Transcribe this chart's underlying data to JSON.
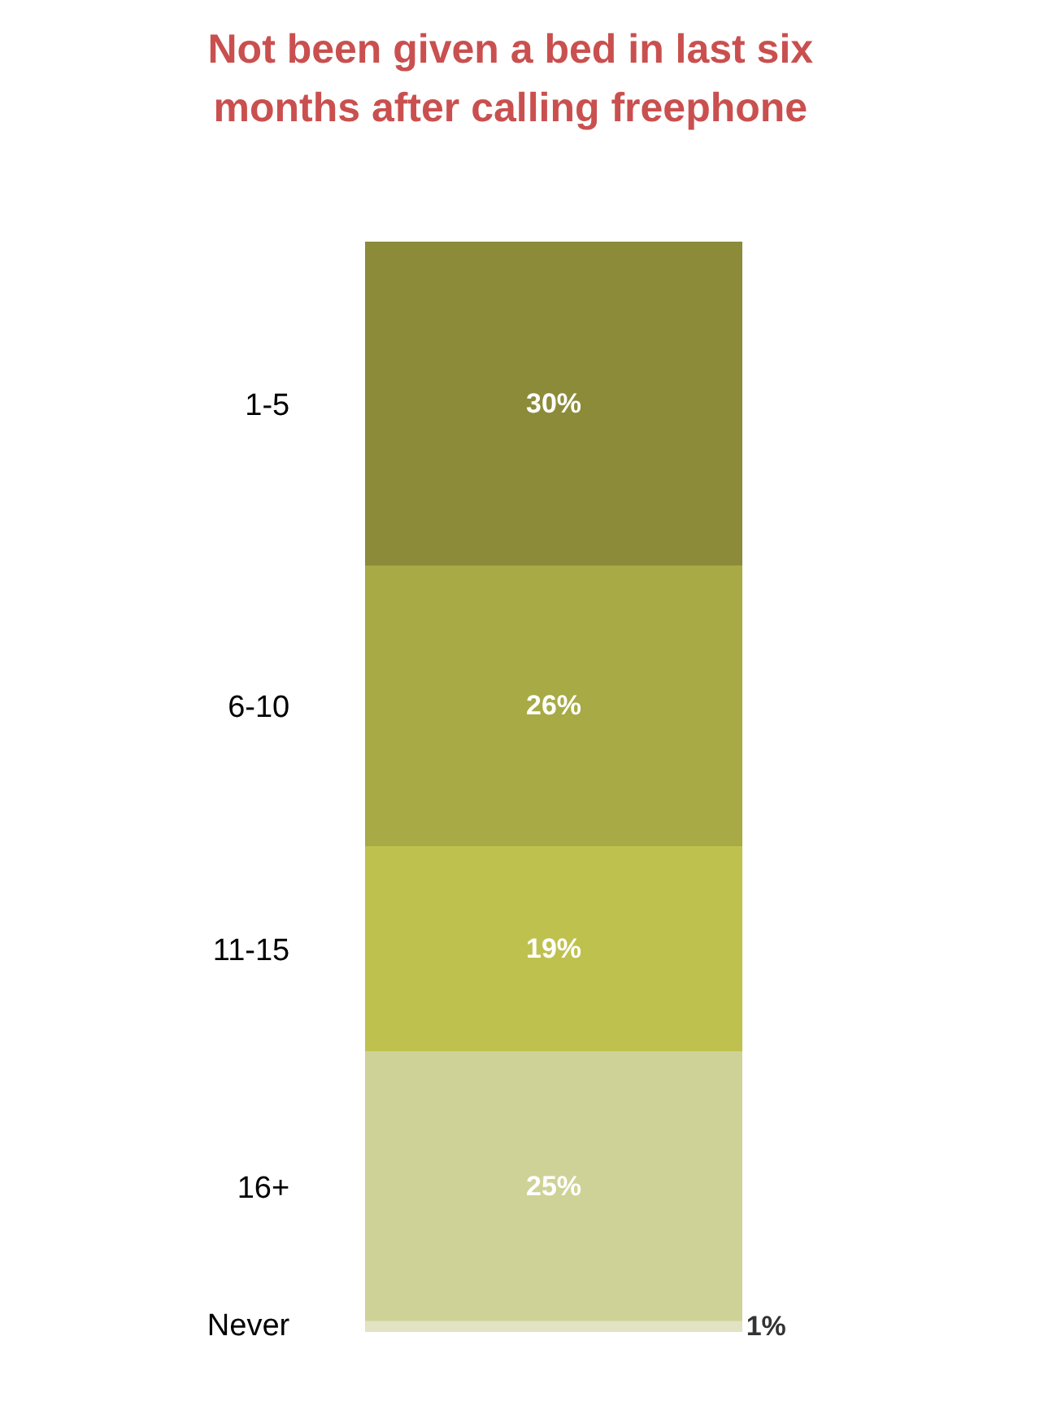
{
  "chart_data": {
    "type": "bar",
    "title": "Not been given a bed in last six\nmonths after calling freephone",
    "stacked": true,
    "categories": [
      null
    ],
    "series": [
      {
        "name": "Never",
        "color": "#e1e3c3",
        "values": [
          1
        ],
        "value_labels": [
          "1%"
        ]
      },
      {
        "name": "16+",
        "color": "#cfd297",
        "values": [
          25
        ],
        "value_labels": [
          "25%"
        ]
      },
      {
        "name": "11-15",
        "color": "#bfc14f",
        "values": [
          19
        ],
        "value_labels": [
          "19%"
        ]
      },
      {
        "name": "6-10",
        "color": "#a7aa45",
        "values": [
          26
        ],
        "value_labels": [
          "26%"
        ]
      },
      {
        "name": "1-5",
        "color": "#8b8b3a",
        "values": [
          30
        ],
        "value_labels": [
          "30%"
        ]
      }
    ]
  }
}
